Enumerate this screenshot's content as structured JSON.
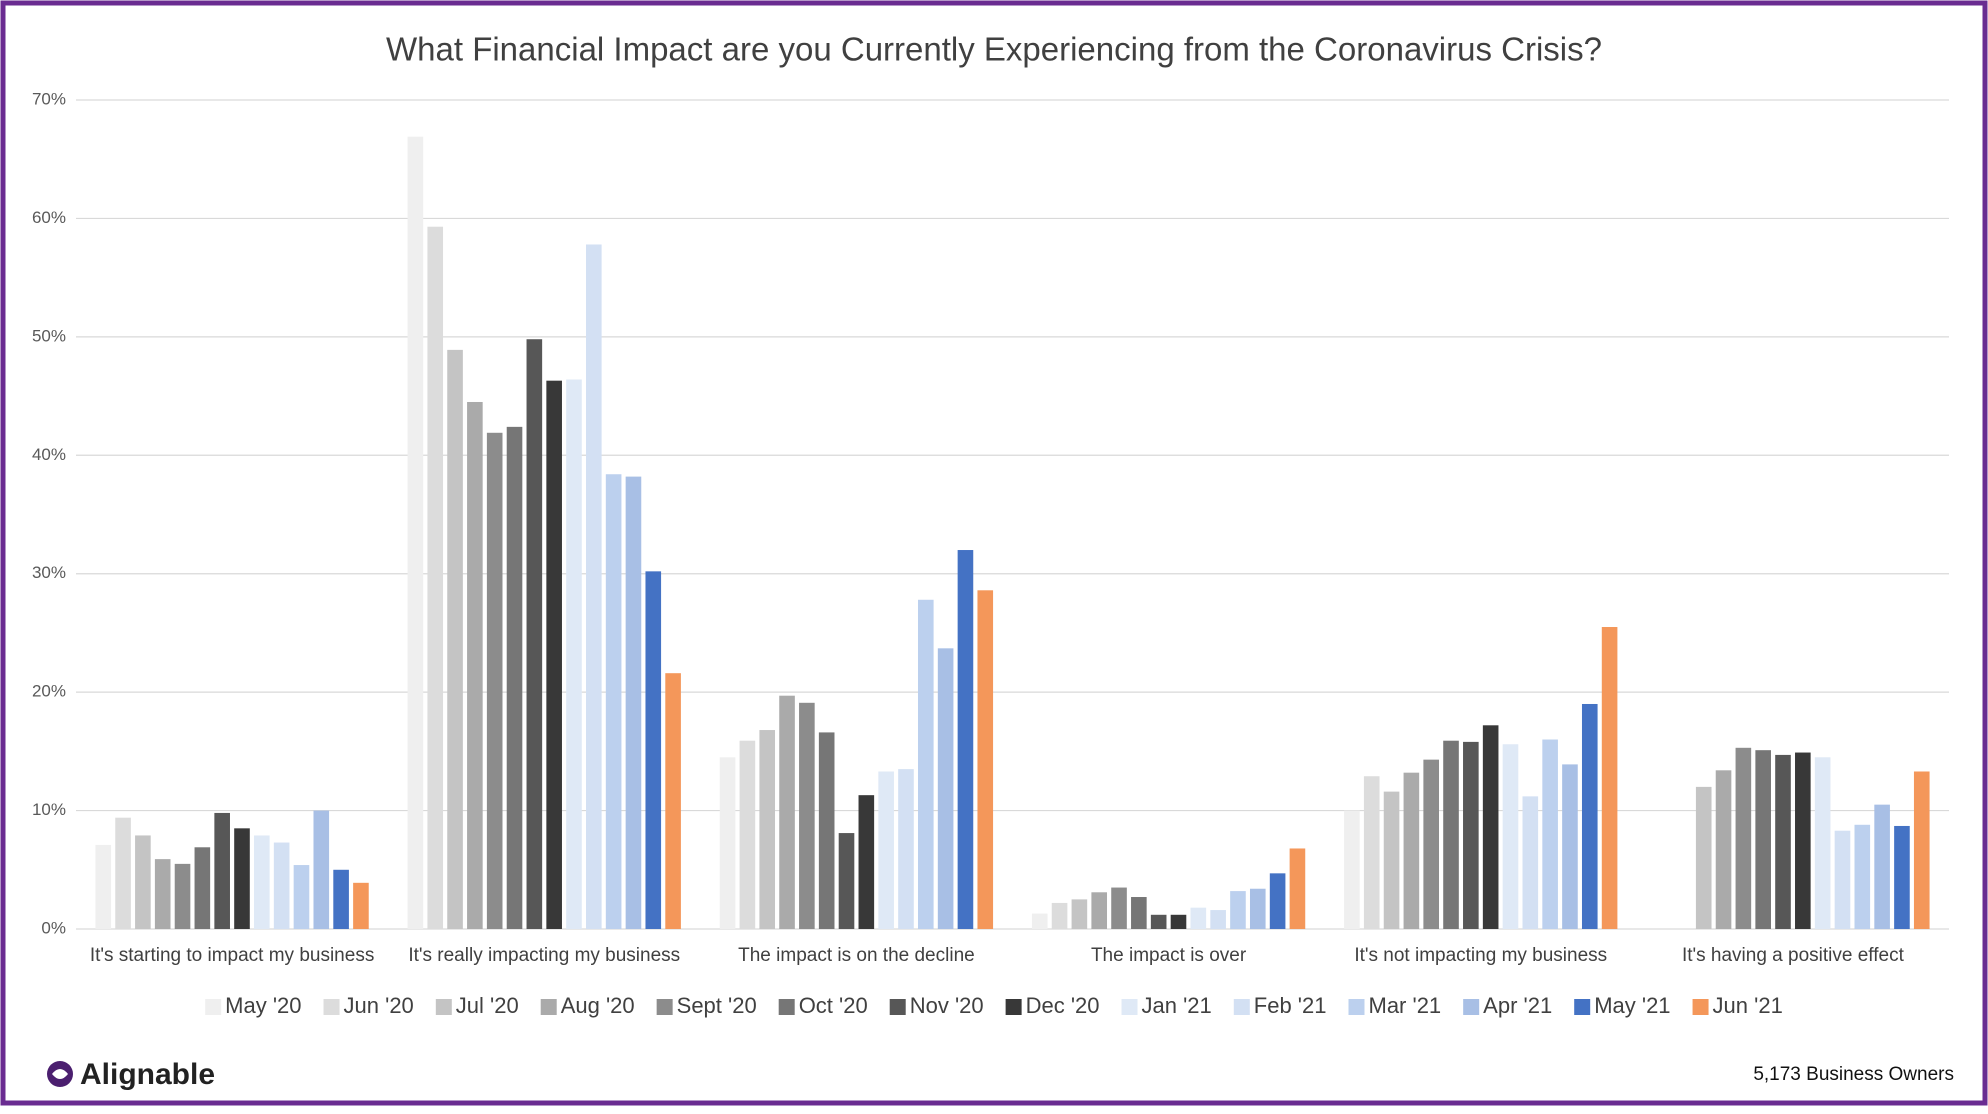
{
  "chart_data": {
    "type": "bar",
    "title": "What Financial Impact are you Currently Experiencing from the Coronavirus Crisis?",
    "categories": [
      "It's starting to impact my business",
      "It's really impacting my business",
      "The impact is on the decline",
      "The impact is over",
      "It's not impacting my business",
      "It's having a positive effect"
    ],
    "series": [
      {
        "name": "May '20",
        "color": "#efefef",
        "values": [
          7.1,
          66.9,
          14.5,
          1.3,
          10.0,
          null
        ]
      },
      {
        "name": "Jun '20",
        "color": "#dcdcdc",
        "values": [
          9.4,
          59.3,
          15.9,
          2.2,
          12.9,
          null
        ]
      },
      {
        "name": "Jul '20",
        "color": "#c4c4c4",
        "values": [
          7.9,
          48.9,
          16.8,
          2.5,
          11.6,
          12.0
        ]
      },
      {
        "name": "Aug '20",
        "color": "#aaaaaa",
        "values": [
          5.9,
          44.5,
          19.7,
          3.1,
          13.2,
          13.4
        ]
      },
      {
        "name": "Sept '20",
        "color": "#8c8c8c",
        "values": [
          5.5,
          41.9,
          19.1,
          3.5,
          14.3,
          15.3
        ]
      },
      {
        "name": "Oct '20",
        "color": "#767676",
        "values": [
          6.9,
          42.4,
          16.6,
          2.7,
          15.9,
          15.1
        ]
      },
      {
        "name": "Nov '20",
        "color": "#575757",
        "values": [
          9.8,
          49.8,
          8.1,
          1.2,
          15.8,
          14.7
        ]
      },
      {
        "name": "Dec '20",
        "color": "#383838",
        "values": [
          8.5,
          46.3,
          11.3,
          1.2,
          17.2,
          14.9
        ]
      },
      {
        "name": "Jan '21",
        "color": "#dfe9f6",
        "values": [
          7.9,
          46.4,
          13.3,
          1.8,
          15.6,
          14.5
        ]
      },
      {
        "name": "Feb '21",
        "color": "#d3e0f3",
        "values": [
          7.3,
          57.8,
          13.5,
          1.6,
          11.2,
          8.3
        ]
      },
      {
        "name": "Mar '21",
        "color": "#bcd0ee",
        "values": [
          5.4,
          38.4,
          27.8,
          3.2,
          16.0,
          8.8
        ]
      },
      {
        "name": "Apr '21",
        "color": "#a8bfe5",
        "values": [
          10.0,
          38.2,
          23.7,
          3.4,
          13.9,
          10.5
        ]
      },
      {
        "name": "May '21",
        "color": "#4472c4",
        "values": [
          5.0,
          30.2,
          32.0,
          4.7,
          19.0,
          8.7
        ]
      },
      {
        "name": "Jun '21",
        "color": "#f4975a",
        "values": [
          3.9,
          21.6,
          28.6,
          6.8,
          25.5,
          13.3
        ]
      }
    ],
    "ylim": [
      0,
      70
    ],
    "yticks": [
      {
        "value": 0,
        "label": "0%"
      },
      {
        "value": 10,
        "label": "10%"
      },
      {
        "value": 20,
        "label": "20%"
      },
      {
        "value": 30,
        "label": "30%"
      },
      {
        "value": 40,
        "label": "40%"
      },
      {
        "value": 50,
        "label": "50%"
      },
      {
        "value": 60,
        "label": "60%"
      },
      {
        "value": 70,
        "label": "70%"
      }
    ],
    "grid": true,
    "legend": "bottom"
  },
  "footer": {
    "brand": "Alignable",
    "note": "5,173 Business Owners"
  }
}
